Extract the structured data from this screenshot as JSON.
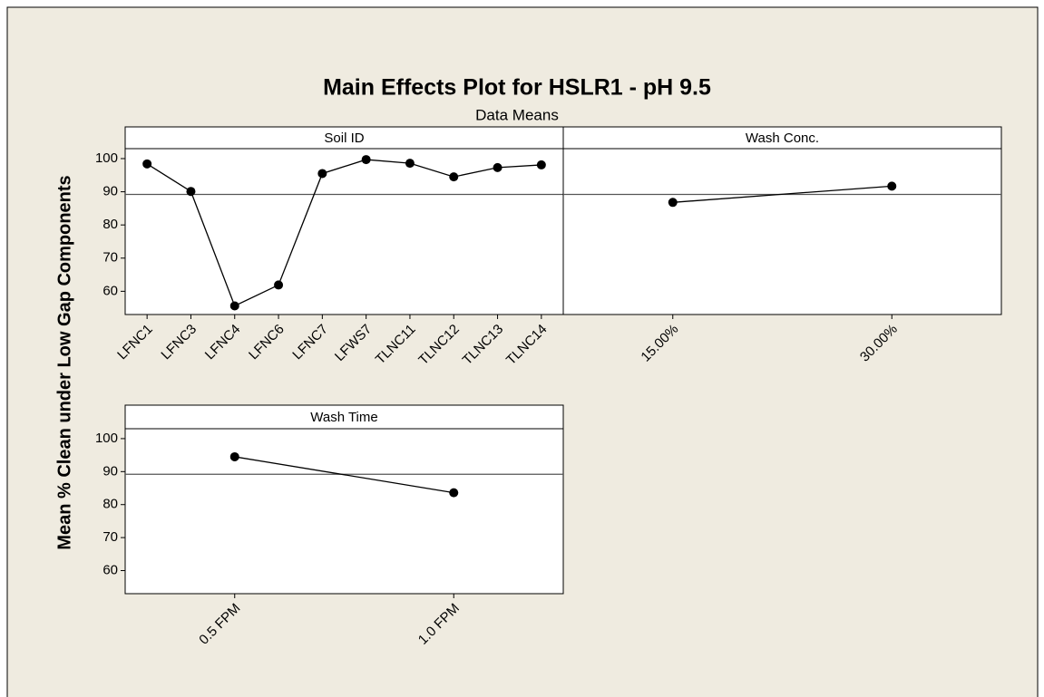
{
  "chart_data": {
    "type": "line",
    "title": "Main Effects Plot for HSLR1 - pH 9.5",
    "subtitle": "Data Means",
    "ylabel": "Mean % Clean under Low Gap Components",
    "ylim": [
      53,
      103
    ],
    "yticks": [
      60,
      70,
      80,
      90,
      100
    ],
    "reference_line": 89.2,
    "color": "#000000",
    "panels": [
      {
        "title": "Soil ID",
        "categories": [
          "LFNC1",
          "LFNC3",
          "LFNC4",
          "LFNC6",
          "LFNC7",
          "LFWS7",
          "TLNC11",
          "TLNC12",
          "TLNC13",
          "TLNC14"
        ],
        "values": [
          98.4,
          90.1,
          55.6,
          61.9,
          95.5,
          99.7,
          98.6,
          94.5,
          97.3,
          98.1
        ]
      },
      {
        "title": "Wash Conc.",
        "categories": [
          "15.00%",
          "30.00%"
        ],
        "values": [
          86.8,
          91.7
        ]
      },
      {
        "title": "Wash Time",
        "categories": [
          "0.5 FPM",
          "1.0 FPM"
        ],
        "values": [
          94.5,
          83.6
        ]
      }
    ]
  }
}
